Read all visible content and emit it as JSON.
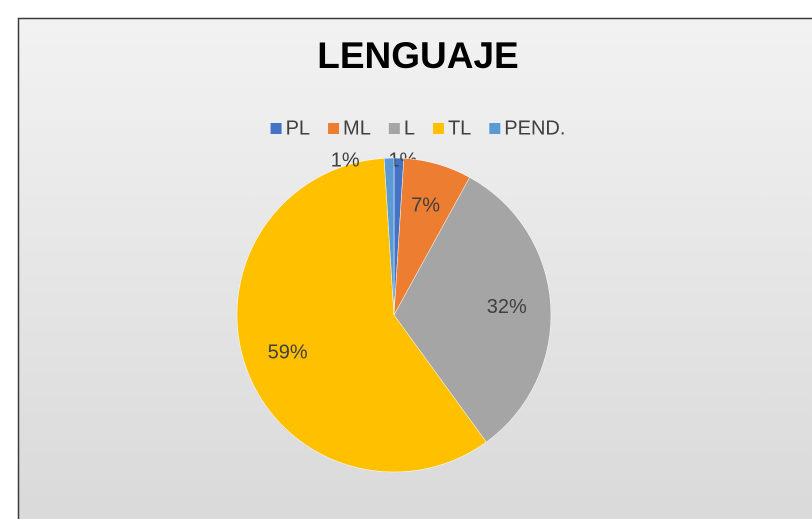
{
  "chart_data": {
    "type": "pie",
    "title": "LENGUAJE",
    "categories": [
      "PL",
      "ML",
      "L",
      "TL",
      "PEND."
    ],
    "values": [
      1,
      7,
      32,
      59,
      1
    ],
    "value_labels": [
      "1%",
      "7%",
      "32%",
      "59%",
      "1%"
    ],
    "colors": [
      "#4472c4",
      "#ed7d31",
      "#a5a5a5",
      "#ffc000",
      "#5b9bd5"
    ],
    "legend": "top"
  }
}
